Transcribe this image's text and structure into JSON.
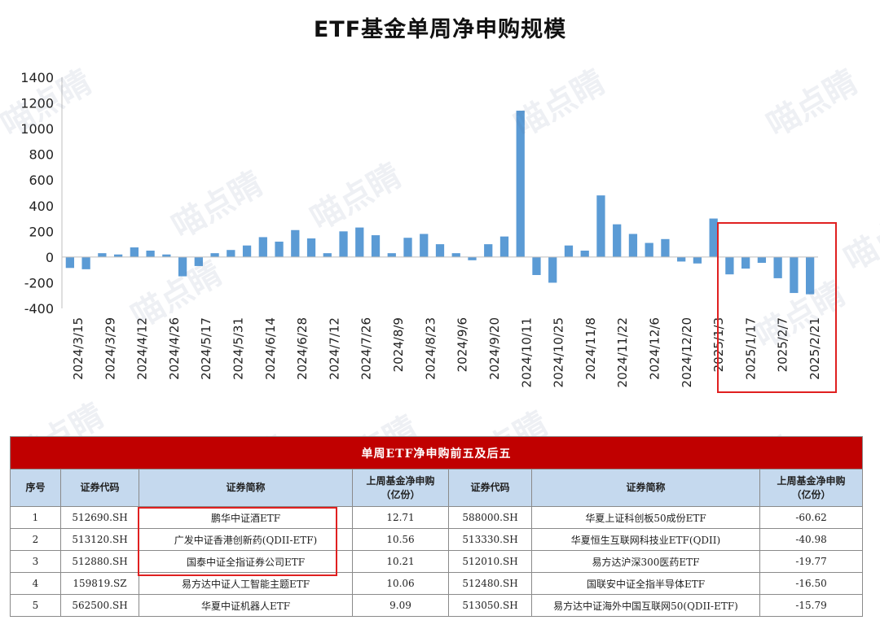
{
  "chart_data": {
    "type": "bar",
    "title": "ETF基金单周净申购规模",
    "ylim": [
      -400,
      1400
    ],
    "yticks": [
      1400,
      1200,
      1000,
      800,
      600,
      400,
      200,
      0,
      -200,
      -400
    ],
    "xtick_labels": [
      "2024/3/15",
      "2024/3/29",
      "2024/4/12",
      "2024/4/26",
      "2024/5/17",
      "2024/5/31",
      "2024/6/14",
      "2024/6/28",
      "2024/7/12",
      "2024/7/26",
      "2024/8/9",
      "2024/8/23",
      "2024/9/6",
      "2024/9/20",
      "2024/10/11",
      "2024/10/25",
      "2024/11/8",
      "2024/11/22",
      "2024/12/6",
      "2024/12/20",
      "2025/1/3",
      "2025/1/17",
      "2025/2/7",
      "2025/2/21"
    ],
    "values": [
      -85,
      -95,
      30,
      20,
      75,
      50,
      20,
      -150,
      -70,
      30,
      55,
      90,
      155,
      120,
      210,
      145,
      30,
      200,
      230,
      170,
      30,
      150,
      180,
      100,
      30,
      -25,
      100,
      160,
      1140,
      -140,
      -200,
      90,
      50,
      480,
      255,
      180,
      110,
      140,
      -35,
      -50,
      300,
      -135,
      -90,
      -45,
      -165,
      -280,
      -290
    ],
    "grid": false,
    "legend": "none",
    "bar_color": "#5b9bd5",
    "highlight_color": "#e02020"
  },
  "watermark": "喵点睛",
  "table": {
    "title": "单周ETF净申购前五及后五",
    "headers": [
      "序号",
      "证券代码",
      "证券简称",
      "上周基金净申购\n（亿份）",
      "证券代码",
      "证券简称",
      "上周基金净申购\n（亿份）"
    ],
    "rows": [
      [
        "1",
        "512690.SH",
        "鹏华中证酒ETF",
        "12.71",
        "588000.SH",
        "华夏上证科创板50成份ETF",
        "-60.62"
      ],
      [
        "2",
        "513120.SH",
        "广发中证香港创新药(QDII-ETF)",
        "10.56",
        "513330.SH",
        "华夏恒生互联网科技业ETF(QDII)",
        "-40.98"
      ],
      [
        "3",
        "512880.SH",
        "国泰中证全指证券公司ETF",
        "10.21",
        "512010.SH",
        "易方达沪深300医药ETF",
        "-19.77"
      ],
      [
        "4",
        "159819.SZ",
        "易方达中证人工智能主题ETF",
        "10.06",
        "512480.SH",
        "国联安中证全指半导体ETF",
        "-16.50"
      ],
      [
        "5",
        "562500.SH",
        "华夏中证机器人ETF",
        "9.09",
        "513050.SH",
        "易方达中证海外中国互联网50(QDII-ETF)",
        "-15.79"
      ]
    ]
  }
}
